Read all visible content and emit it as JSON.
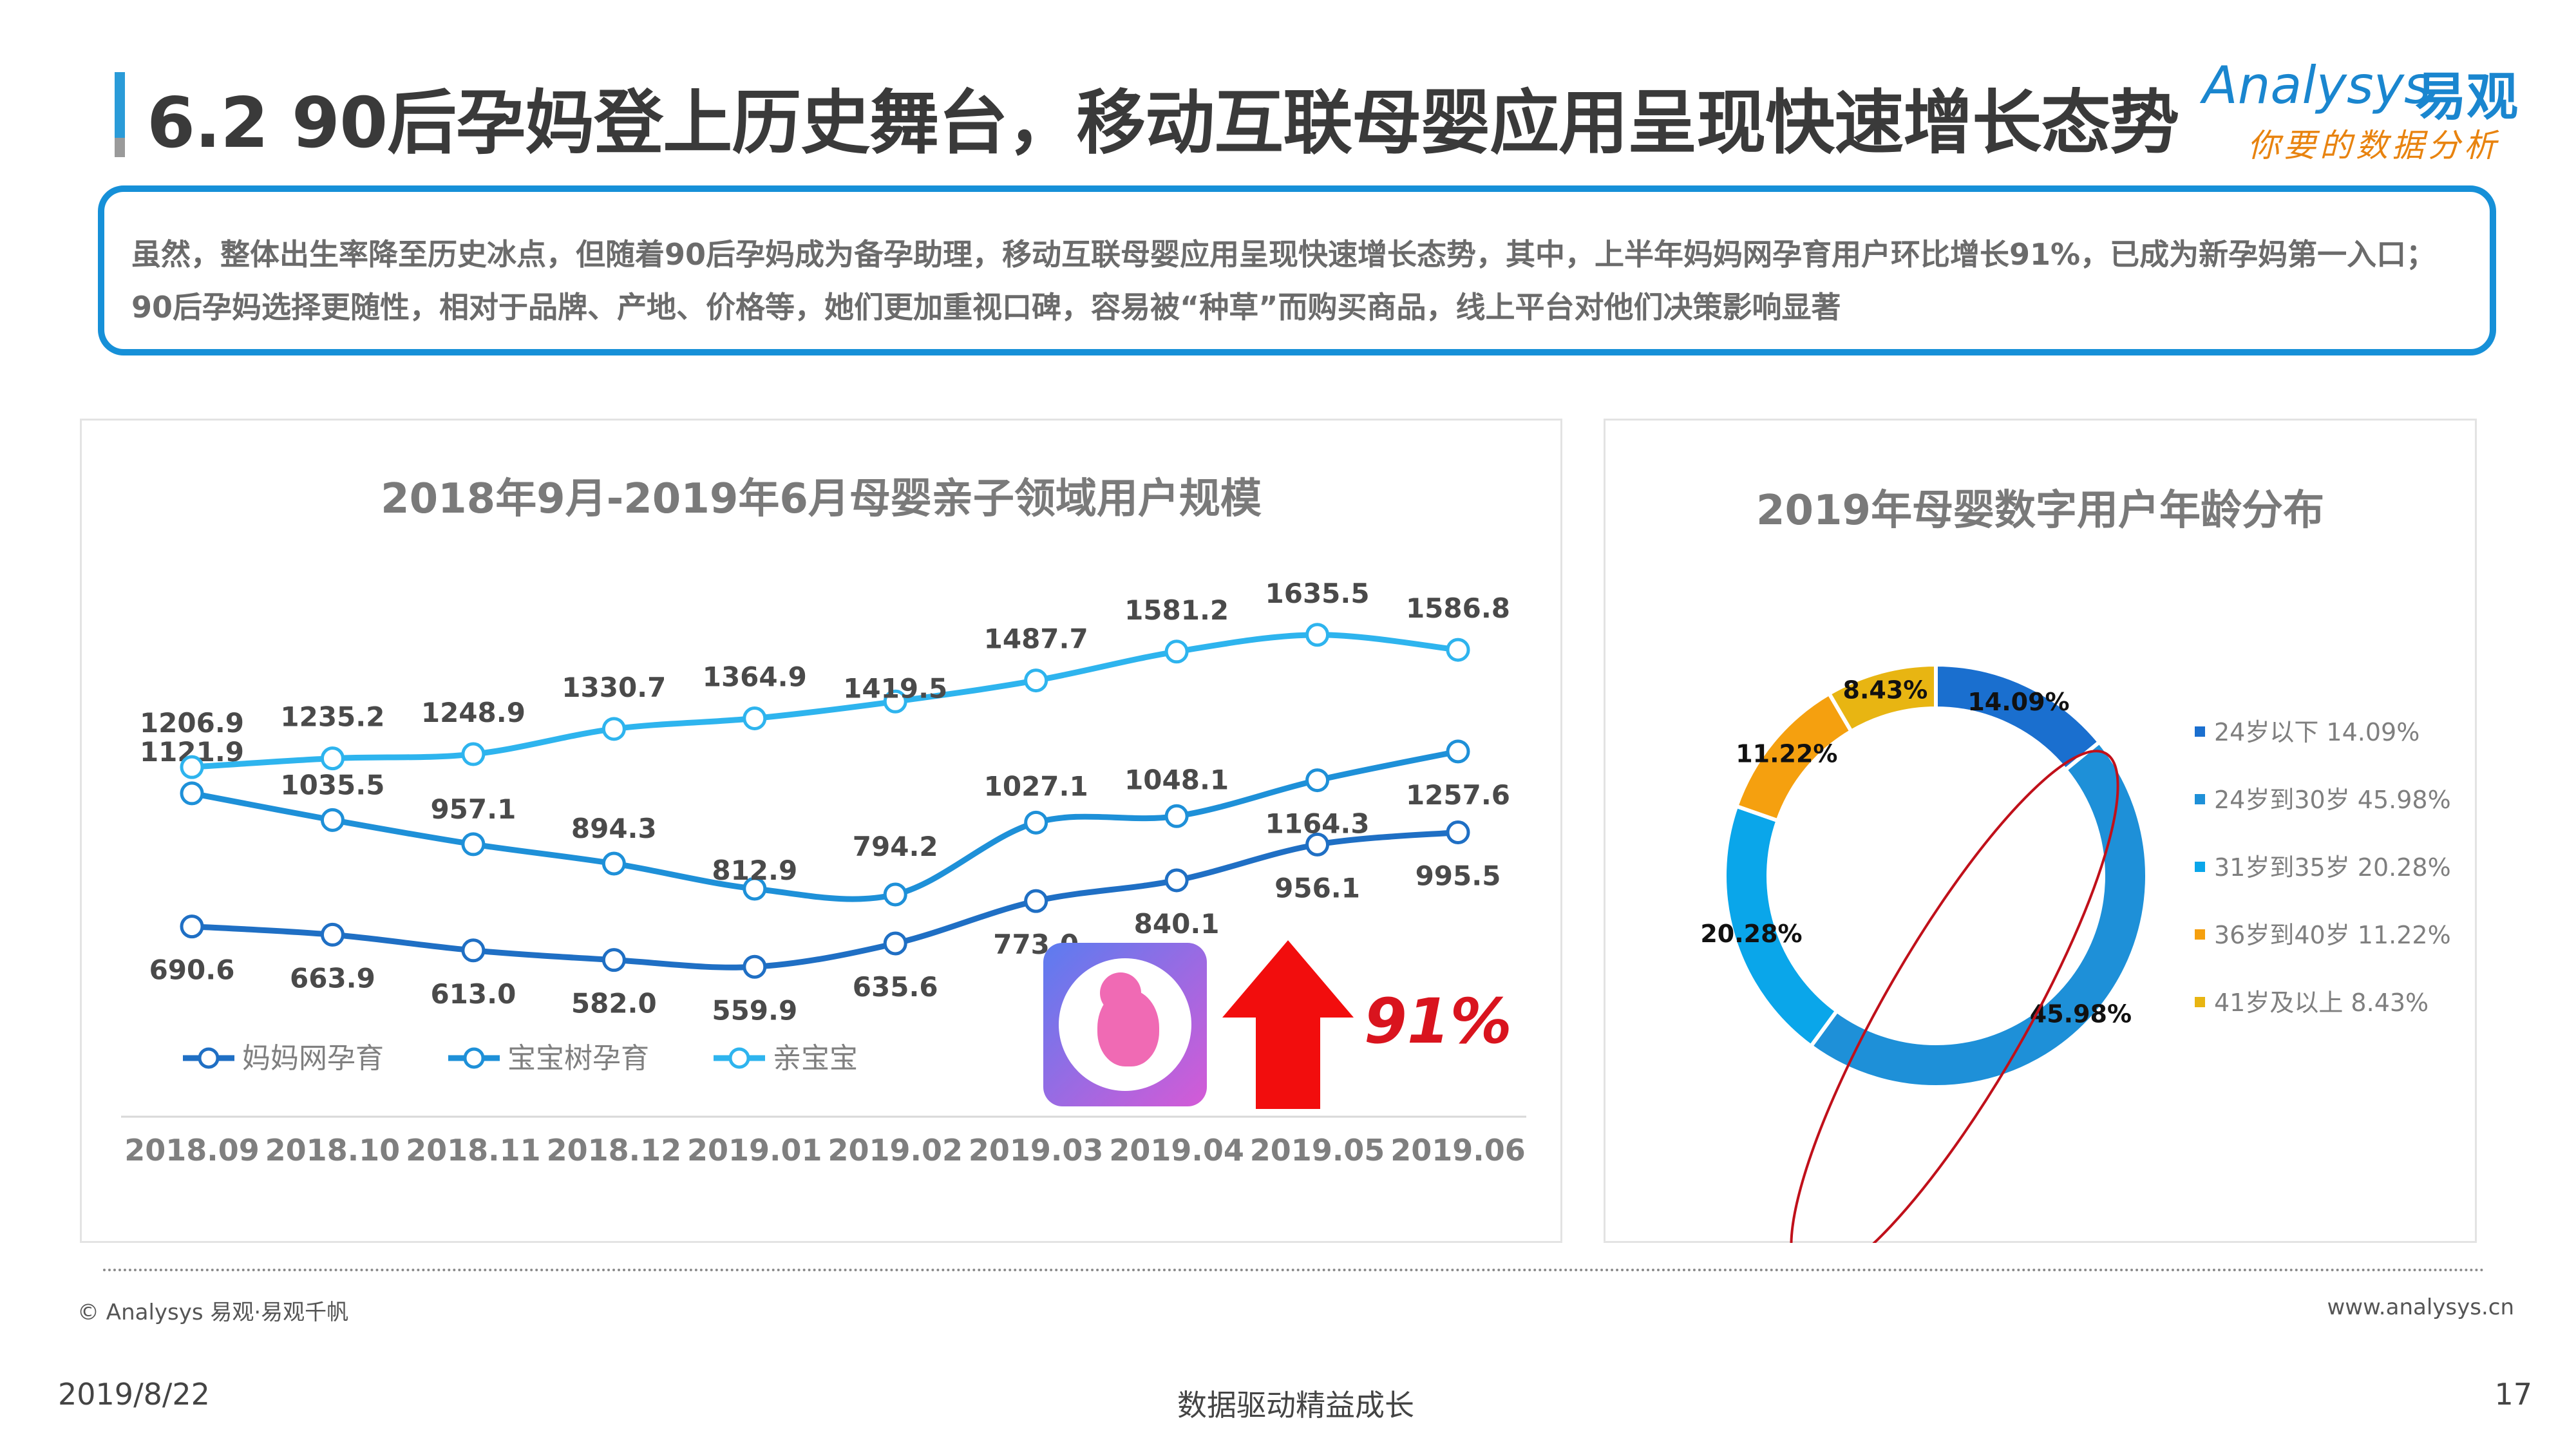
{
  "title": "6.2 90后孕妈登上历史舞台，移动互联母婴应用呈现快速增长态势",
  "logo": {
    "en": "Analysys",
    "zh": "易观",
    "slogan": "你要的数据分析"
  },
  "summary": "虽然，整体出生率降至历史冰点，但随着90后孕妈成为备孕助理，移动互联母婴应用呈现快速增长态势，其中，上半年妈妈网孕育用户环比增长91%，已成为新孕妈第一入口；90后孕妈选择更随性，相对于品牌、产地、价格等，她们更加重视口碑，容易被“种草”而购买商品，线上平台对他们决策影响显著",
  "growth_label": "91%",
  "footer": {
    "source": "© Analysys 易观·易观千帆",
    "site": "www.analysys.cn",
    "date": "2019/8/22",
    "slogan": "数据驱动精益成长",
    "page": "17"
  },
  "colors": {
    "accent": "#1690d8",
    "series1": "#1f6fc4",
    "series2": "#1e90d8",
    "series3": "#2eb4ee",
    "growth": "#d9141e"
  },
  "chart_data": [
    {
      "type": "line",
      "title": "2018年9月-2019年6月母婴亲子领域用户规模",
      "x": [
        "2018.09",
        "2018.10",
        "2018.11",
        "2018.12",
        "2019.01",
        "2019.02",
        "2019.03",
        "2019.04",
        "2019.05",
        "2019.06"
      ],
      "series": [
        {
          "name": "妈妈网孕育",
          "values": [
            690.6,
            663.9,
            613.0,
            582.0,
            559.9,
            635.6,
            773.0,
            840.1,
            956.1,
            995.5
          ],
          "labels": [
            "690.6",
            "663.9",
            "613.0",
            "582.0",
            "559.9",
            "635.6",
            "773.0",
            "840.1",
            "956.1",
            "995.5"
          ]
        },
        {
          "name": "宝宝树孕育",
          "values": [
            1121.9,
            1035.5,
            957.1,
            894.3,
            812.9,
            794.2,
            1027.1,
            1048.1,
            1164.3,
            1257.6
          ],
          "labels": [
            "1121.9",
            "1035.5",
            "957.1",
            "894.3",
            "812.9",
            "794.2",
            "1027.1",
            "1048.1",
            "1164.3",
            "1257.6"
          ]
        },
        {
          "name": "亲宝宝",
          "values": [
            1206.9,
            1235.2,
            1248.9,
            1330.7,
            1364.9,
            1419.5,
            1487.7,
            1581.2,
            1635.5,
            1586.8
          ],
          "labels": [
            "1206.9",
            "1235.2",
            "1248.9",
            "1330.7",
            "1364.9",
            "1419.5",
            "1487.7",
            "1581.2",
            "1635.5",
            "1586.8"
          ]
        }
      ],
      "legend": "bottom-left",
      "grid": false
    },
    {
      "type": "pie",
      "title": "2019年母婴数字用户年龄分布",
      "categories": [
        "24岁以下",
        "24岁到30岁",
        "31岁到35岁",
        "36岁到40岁",
        "41岁及以上"
      ],
      "values": [
        14.09,
        45.98,
        20.28,
        11.22,
        8.43
      ],
      "labels": [
        "14.09%",
        "45.98%",
        "20.28%",
        "11.22%",
        "8.43%"
      ],
      "legend_labels": [
        "24岁以下 14.09%",
        "24岁到30岁 45.98%",
        "31岁到35岁 20.28%",
        "36岁到40岁 11.22%",
        "41岁及以上 8.43%"
      ],
      "colors": [
        "#1a6fcf",
        "#1e90d8",
        "#0aa6ea",
        "#f5a00f",
        "#e8b512"
      ],
      "legend": "right"
    }
  ]
}
